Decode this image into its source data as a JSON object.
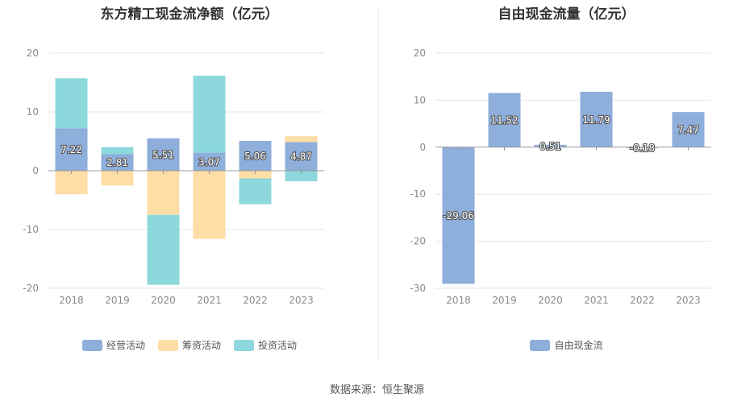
{
  "source_text": "数据来源：恒生聚源",
  "chart_data": [
    {
      "type": "bar",
      "stacked": true,
      "title": "东方精工现金流净额（亿元）",
      "categories": [
        "2018",
        "2019",
        "2020",
        "2021",
        "2022",
        "2023"
      ],
      "ylim": [
        -20,
        20
      ],
      "yticks": [
        20,
        10,
        0,
        -10,
        -20
      ],
      "grid": true,
      "legend_position": "bottom",
      "series": [
        {
          "name": "经营活动",
          "color": "#8eaedb",
          "values": [
            7.22,
            2.81,
            5.51,
            3.07,
            5.06,
            4.87
          ],
          "labels": [
            "7.22",
            "2.81",
            "5.51",
            "3.07",
            "5.06",
            "4.87"
          ]
        },
        {
          "name": "筹资活动",
          "color": "#fedda6",
          "values": [
            -4.0,
            -2.5,
            -7.5,
            -11.6,
            -1.3,
            1.0
          ]
        },
        {
          "name": "投资活动",
          "color": "#8dd8dc",
          "values": [
            8.5,
            1.2,
            -11.9,
            13.1,
            -4.4,
            -1.8
          ]
        }
      ]
    },
    {
      "type": "bar",
      "title": "自由现金流量（亿元）",
      "categories": [
        "2018",
        "2019",
        "2020",
        "2021",
        "2022",
        "2023"
      ],
      "ylim": [
        -30,
        20
      ],
      "yticks": [
        20,
        10,
        0,
        -10,
        -20,
        -30
      ],
      "grid": true,
      "legend_position": "bottom",
      "series": [
        {
          "name": "自由现金流",
          "color": "#8eaedb",
          "values": [
            -29.06,
            11.52,
            0.51,
            11.79,
            -0.18,
            7.47
          ],
          "labels": [
            "-29.06",
            "11.52",
            "0.51",
            "11.79",
            "-0.18",
            "7.47"
          ]
        }
      ]
    }
  ]
}
